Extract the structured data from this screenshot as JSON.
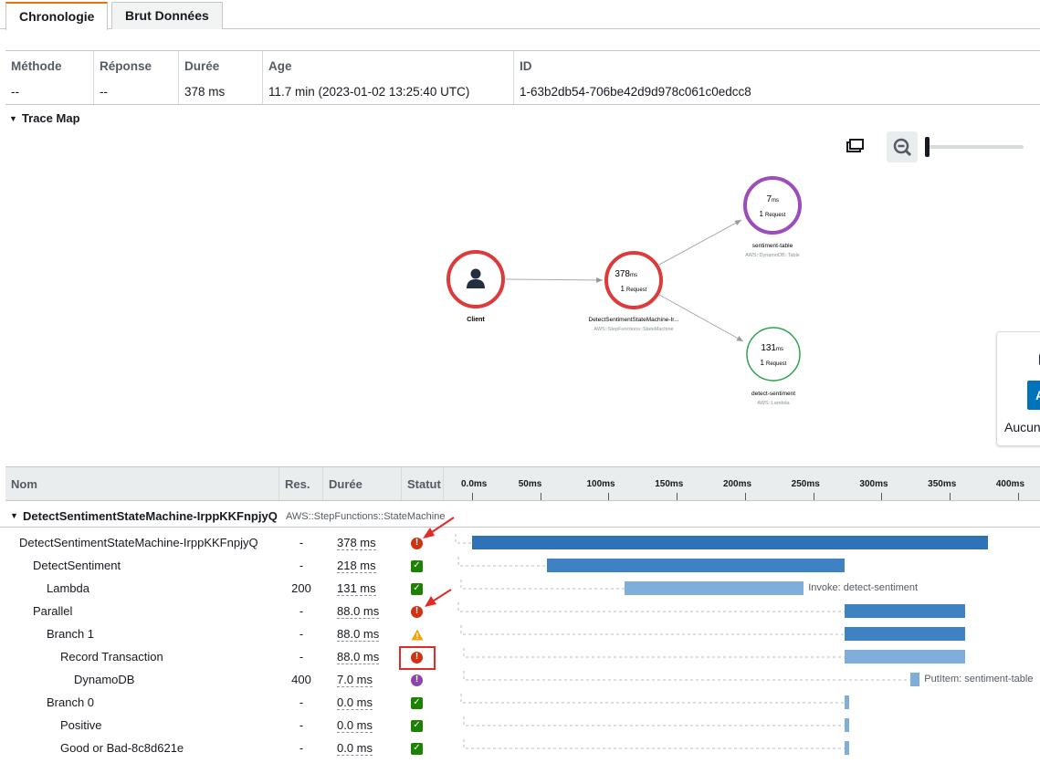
{
  "tabs": [
    {
      "label": "Chronologie",
      "active": true
    },
    {
      "label": "Brut Données",
      "active": false
    }
  ],
  "summary": {
    "columns": [
      "Méthode",
      "Réponse",
      "Durée",
      "Age",
      "ID"
    ],
    "values": [
      "--",
      "--",
      "378 ms",
      "11.7 min (2023-01-02 13:25:40 UTC)",
      "1-63b2db54-706be42d9d978c061c0edcc8"
    ]
  },
  "trace_map": {
    "title": "Trace Map",
    "nodes": [
      {
        "name": "Client",
        "type": "",
        "duration": "",
        "unit": "",
        "requests": "",
        "req_label": "",
        "status_color": "#dd3b3b"
      },
      {
        "name": "DetectSentimentStateMachine-Ir...",
        "type": "AWS::StepFunctions::StateMachine",
        "duration": "378",
        "unit": "ms",
        "requests": "1",
        "req_label": "Request",
        "status_color": "#dd3b3b"
      },
      {
        "name": "sentiment-table",
        "type": "AWS::DynamoDB::Table",
        "duration": "7",
        "unit": "ms",
        "requests": "1",
        "req_label": "Request",
        "status_color": "#9b4dbb"
      },
      {
        "name": "detect-sentiment",
        "type": "AWS::Lambda",
        "duration": "131",
        "unit": "ms",
        "requests": "1",
        "req_label": "Request",
        "status_color": "#2ea44f"
      }
    ],
    "side_panel": {
      "button_letter": "A",
      "text": "Aucun"
    }
  },
  "timeline": {
    "columns": {
      "name": "Nom",
      "res": "Res.",
      "dur": "Durée",
      "status": "Statut"
    },
    "ticks": [
      "0.0ms",
      "50ms",
      "100ms",
      "150ms",
      "200ms",
      "250ms",
      "300ms",
      "350ms",
      "400ms"
    ],
    "group": {
      "name": "DetectSentimentStateMachine-IrppKKFnpjyQ",
      "type": "AWS::StepFunctions::StateMachine"
    },
    "rows": [
      {
        "name": "DetectSentimentStateMachine-IrppKKFnpjyQ",
        "indent": 0,
        "res": "-",
        "dur": "378 ms",
        "status": "error",
        "start_ms": 0,
        "duration_ms": 378,
        "bar_label": ""
      },
      {
        "name": "DetectSentiment",
        "indent": 1,
        "res": "-",
        "dur": "218 ms",
        "status": "ok",
        "start_ms": 55,
        "duration_ms": 218,
        "bar_label": ""
      },
      {
        "name": "Lambda",
        "indent": 2,
        "res": "200",
        "dur": "131 ms",
        "status": "ok",
        "start_ms": 112,
        "duration_ms": 131,
        "bar_label": "Invoke: detect-sentiment"
      },
      {
        "name": "Parallel",
        "indent": 1,
        "res": "-",
        "dur": "88.0 ms",
        "status": "error",
        "start_ms": 273,
        "duration_ms": 88,
        "bar_label": ""
      },
      {
        "name": "Branch 1",
        "indent": 2,
        "res": "-",
        "dur": "88.0 ms",
        "status": "warning",
        "start_ms": 273,
        "duration_ms": 88,
        "bar_label": ""
      },
      {
        "name": "Record Transaction",
        "indent": 3,
        "res": "-",
        "dur": "88.0 ms",
        "status": "error",
        "start_ms": 273,
        "duration_ms": 88,
        "bar_label": ""
      },
      {
        "name": "DynamoDB",
        "indent": 4,
        "res": "400",
        "dur": "7.0 ms",
        "status": "fault",
        "start_ms": 321,
        "duration_ms": 7,
        "bar_label": "PutItem: sentiment-table"
      },
      {
        "name": "Branch 0",
        "indent": 2,
        "res": "-",
        "dur": "0.0 ms",
        "status": "ok",
        "start_ms": 273,
        "duration_ms": 0,
        "bar_label": ""
      },
      {
        "name": "Positive",
        "indent": 3,
        "res": "-",
        "dur": "0.0 ms",
        "status": "ok",
        "start_ms": 273,
        "duration_ms": 0,
        "bar_label": ""
      },
      {
        "name": "Good or Bad-8c8d621e",
        "indent": 3,
        "res": "-",
        "dur": "0.0 ms",
        "status": "ok",
        "start_ms": 273,
        "duration_ms": 0,
        "bar_label": ""
      }
    ]
  },
  "colors": {
    "accent": "#ec7211",
    "error": "#d13212",
    "ok": "#1d8102",
    "bar": "#2e73b8",
    "bar_light": "#7faedb",
    "annotation": "#e02b27"
  }
}
